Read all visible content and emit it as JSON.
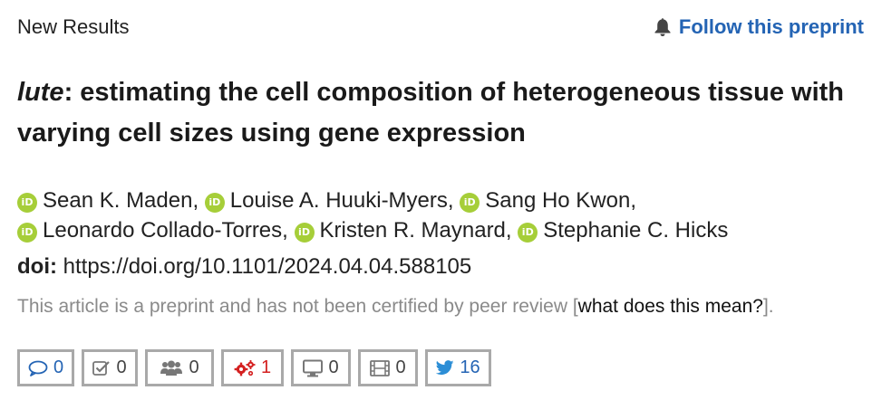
{
  "header": {
    "section_label": "New Results",
    "follow_label": "Follow this preprint"
  },
  "article": {
    "title_italic": "lute",
    "title_rest": ": estimating the cell composition of heterogeneous tissue with varying cell sizes using gene expression",
    "authors": [
      "Sean K. Maden,",
      "Louise A. Huuki-Myers,",
      "Sang Ho Kwon,",
      "Leonardo Collado-Torres,",
      "Kristen R. Maynard,",
      "Stephanie C. Hicks"
    ],
    "orcid_badge": "iD",
    "doi_label": "doi:",
    "doi_value": "https://doi.org/10.1101/2024.04.04.588105"
  },
  "disclaimer": {
    "text_before": "This article is a preprint and has not been certified by peer review [",
    "link_text": "what does this mean?",
    "text_after": "]."
  },
  "metrics": {
    "comments": "0",
    "reviews": "0",
    "community": "0",
    "social": "1",
    "blogs": "0",
    "videos": "0",
    "tweets": "16"
  },
  "icons": {
    "follow": "bell-icon",
    "comments": "comment-bubble-icon",
    "reviews": "checkbox-icon",
    "community": "users-icon",
    "social": "gears-icon",
    "blogs": "monitor-icon",
    "videos": "film-icon",
    "tweets": "twitter-bird-icon"
  },
  "colors": {
    "link_blue": "#2464b4",
    "orcid_green": "#a6ce39",
    "alert_red": "#d42020",
    "muted_gray": "#8a8a8a",
    "border_gray": "#a9a9a9"
  }
}
